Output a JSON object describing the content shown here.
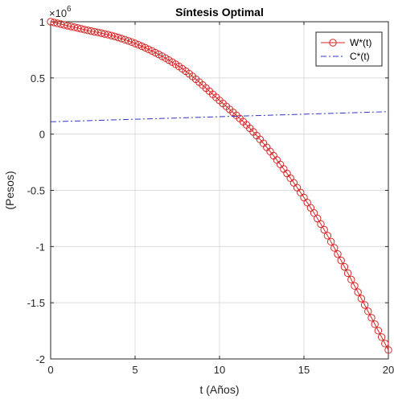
{
  "chart_data": {
    "type": "line",
    "title": "Síntesis Optimal",
    "xlabel": "t (Años)",
    "ylabel": "(Pesos)",
    "exponent_base": "×10",
    "exponent_power": "6",
    "xlim": [
      0,
      20
    ],
    "ylim": [
      -2000000,
      1000000
    ],
    "x_ticks": [
      0,
      5,
      10,
      15,
      20
    ],
    "x_tick_labels": [
      "0",
      "5",
      "10",
      "15",
      "20"
    ],
    "y_ticks": [
      -2000000,
      -1500000,
      -1000000,
      -500000,
      0,
      500000,
      1000000
    ],
    "y_tick_labels": [
      "-2",
      "-1.5",
      "-1",
      "-0.5",
      "0",
      "0.5",
      "1"
    ],
    "grid": true,
    "legend_position": "top-right",
    "series": [
      {
        "name": "W*(t)",
        "color": "#d62728",
        "line_style": "solid",
        "marker": "circle",
        "x": [
          0,
          2,
          4,
          6,
          8,
          10,
          12,
          14,
          16,
          18,
          20
        ],
        "y": [
          1000000,
          930000,
          860000,
          740000,
          560000,
          300000,
          20000,
          -350000,
          -800000,
          -1350000,
          -1920000
        ]
      },
      {
        "name": "C*(t)",
        "color": "#3333cc",
        "line_style": "dashdot",
        "marker": "none",
        "x": [
          0,
          20
        ],
        "y": [
          110000,
          200000
        ]
      }
    ]
  }
}
